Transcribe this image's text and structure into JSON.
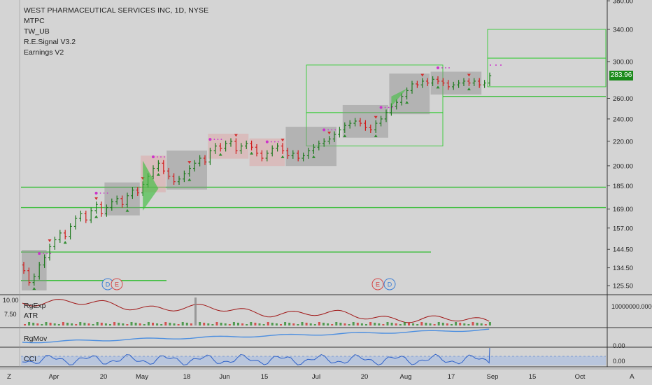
{
  "header": {
    "title": "WEST PHARMACEUTICAL SERVICES INC, 1D, NYSE",
    "indicators": [
      "MTPC",
      "TW_UB",
      "R.E.Signal V3.2",
      "Earnings V2"
    ]
  },
  "panes": {
    "rgexp_label": "RgExp",
    "atr_label": "ATR",
    "rgmov_label": "RgMov",
    "cci_label": "CCI"
  },
  "last_price": "283.96",
  "corner_left": "Z",
  "corner_right": "A",
  "colors": {
    "up": "#1f7a1f",
    "down": "#d11c1c",
    "level_line": "#3fbf3f",
    "box_green": "#33cc33",
    "box_gray": "#8c8c8c",
    "box_red": "#e39a9a",
    "dot": "#cc33cc",
    "earnings_red": "#d44a4a",
    "dividend_blue": "#3d7fd6",
    "rgexp_line": "#a01515",
    "rgmov_line": "#4d8fe0",
    "cci_line": "#2f62c8"
  },
  "chart_data": {
    "type": "candlestick",
    "title": "WEST PHARMACEUTICAL SERVICES INC, 1D, NYSE",
    "x_ticks": [
      "Apr",
      "20",
      "May",
      "18",
      "Jun",
      "15",
      "Jul",
      "20",
      "Aug",
      "17",
      "Sep",
      "15",
      "Oct"
    ],
    "y_ticks": [
      125.5,
      134.5,
      144.5,
      157.0,
      169.0,
      185.0,
      200.0,
      220.0,
      240.0,
      260.0,
      300.0,
      340.0,
      380.0
    ],
    "y_tick_labels": [
      "125.50",
      "134.50",
      "144.50",
      "157.00",
      "169.00",
      "185.00",
      "200.00",
      "220.00",
      "240.00",
      "260.00",
      "300.00",
      "340.00",
      "380.00"
    ],
    "ylim": [
      120,
      385
    ],
    "y_scale": "log",
    "last_value": 283.96,
    "closes": [
      133,
      127,
      130,
      136,
      140,
      146,
      150,
      154,
      152,
      158,
      163,
      166,
      162,
      168,
      172,
      166,
      170,
      174,
      176,
      172,
      178,
      182,
      180,
      186,
      192,
      198,
      202,
      196,
      192,
      188,
      190,
      194,
      198,
      202,
      206,
      203,
      212,
      216,
      214,
      218,
      220,
      212,
      216,
      218,
      215,
      210,
      206,
      210,
      214,
      216,
      212,
      208,
      210,
      206,
      208,
      212,
      215,
      218,
      220,
      222,
      226,
      230,
      234,
      236,
      238,
      236,
      232,
      230,
      236,
      240,
      246,
      252,
      256,
      262,
      268,
      275,
      274,
      278,
      276,
      280,
      278,
      276,
      272,
      274,
      276,
      278,
      276,
      278,
      274,
      276,
      284
    ],
    "level_lines": [
      {
        "value": 184.0,
        "from": "Apr"
      },
      {
        "value": 170.0,
        "from": "Apr"
      },
      {
        "value": 143.0,
        "from": "Apr",
        "to": "Sep"
      },
      {
        "value": 128.0,
        "from": "Apr",
        "to": "May"
      },
      {
        "value": 262.0,
        "from": "Aug"
      }
    ],
    "target_boxes": [
      {
        "top": 340,
        "bottom": 304
      },
      {
        "top": 304,
        "bottom": 272
      },
      {
        "top": 296,
        "bottom": 246
      },
      {
        "top": 246,
        "bottom": 216
      }
    ],
    "events": [
      {
        "type": "D",
        "position": "Apr"
      },
      {
        "type": "E",
        "position": "Apr"
      },
      {
        "type": "E",
        "position": "Jul"
      },
      {
        "type": "D",
        "position": "Aug"
      }
    ],
    "subpanes": [
      {
        "name": "RgExp",
        "y_tick_labels": [
          "10.00",
          "7.50"
        ],
        "right_label": "10000000.0000"
      },
      {
        "name": "RgMov",
        "right_label": "0.00"
      },
      {
        "name": "CCI",
        "right_label": "0.00"
      }
    ]
  }
}
